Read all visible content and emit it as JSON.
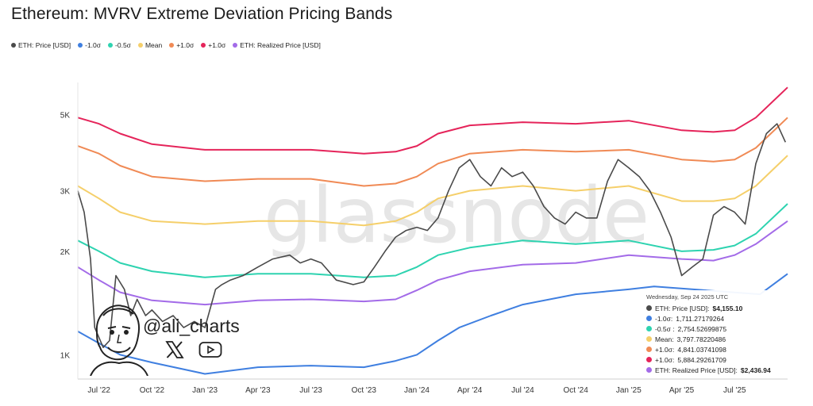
{
  "title": "Ethereum: MVRV Extreme Deviation Pricing Bands",
  "legend": [
    {
      "label": "ETH: Price [USD]",
      "color": "#4a4a4a"
    },
    {
      "label": "-1.0σ",
      "color": "#3f7fe0"
    },
    {
      "label": "-0.5σ",
      "color": "#2ed3b0"
    },
    {
      "label": "Mean",
      "color": "#f5cf6a"
    },
    {
      "label": "+1.0σ",
      "color": "#f08a55"
    },
    {
      "label": "+1.0σ",
      "color": "#e5245a"
    },
    {
      "label": "ETH: Realized Price [USD]",
      "color": "#a36be8"
    }
  ],
  "watermark": "glassnode",
  "handle": "@ali_charts",
  "tooltip": {
    "date": "Wednesday, Sep 24 2025 UTC",
    "rows": [
      {
        "label": "ETH: Price [USD]:",
        "value": "$4,155.10",
        "bold": true,
        "color": "#4a4a4a"
      },
      {
        "label": "-1.0σ:",
        "value": "1,711.27179264",
        "bold": false,
        "color": "#3f7fe0"
      },
      {
        "label": "-0.5σ :",
        "value": "2,754.52699875",
        "bold": false,
        "color": "#2ed3b0"
      },
      {
        "label": "Mean:",
        "value": "3,797.78220486",
        "bold": false,
        "color": "#f5cf6a"
      },
      {
        "label": "+1.0σ:",
        "value": "4,841.03741098",
        "bold": false,
        "color": "#f08a55"
      },
      {
        "label": "+1.0σ:",
        "value": "5,884.29261709",
        "bold": false,
        "color": "#e5245a"
      },
      {
        "label": "ETH: Realized Price [USD]:",
        "value": "$2,436.94",
        "bold": true,
        "color": "#a36be8"
      }
    ]
  },
  "chart_data": {
    "type": "line",
    "title": "Ethereum: MVRV Extreme Deviation Pricing Bands",
    "y_scale": "log",
    "ylim": [
      850,
      6200
    ],
    "y_ticks": [
      {
        "v": 1000,
        "label": "1K"
      },
      {
        "v": 2000,
        "label": "2K"
      },
      {
        "v": 3000,
        "label": "3K"
      },
      {
        "v": 5000,
        "label": "5K"
      }
    ],
    "x_range": [
      2022.4,
      2025.75
    ],
    "x_ticks": [
      {
        "v": 2022.5,
        "label": "Jul '22"
      },
      {
        "v": 2022.75,
        "label": "Oct '22"
      },
      {
        "v": 2023.0,
        "label": "Jan '23"
      },
      {
        "v": 2023.25,
        "label": "Apr '23"
      },
      {
        "v": 2023.5,
        "label": "Jul '23"
      },
      {
        "v": 2023.75,
        "label": "Oct '23"
      },
      {
        "v": 2024.0,
        "label": "Jan '24"
      },
      {
        "v": 2024.25,
        "label": "Apr '24"
      },
      {
        "v": 2024.5,
        "label": "Jul '24"
      },
      {
        "v": 2024.75,
        "label": "Oct '24"
      },
      {
        "v": 2025.0,
        "label": "Jan '25"
      },
      {
        "v": 2025.25,
        "label": "Apr '25"
      },
      {
        "v": 2025.5,
        "label": "Jul '25"
      }
    ],
    "series": [
      {
        "name": "+1.0σ",
        "color": "#e5245a",
        "width": 2,
        "x": [
          2022.4,
          2022.5,
          2022.6,
          2022.75,
          2023.0,
          2023.25,
          2023.5,
          2023.75,
          2023.9,
          2024.0,
          2024.1,
          2024.25,
          2024.5,
          2024.75,
          2025.0,
          2025.25,
          2025.4,
          2025.5,
          2025.6,
          2025.75
        ],
        "y": [
          4900,
          4700,
          4400,
          4100,
          3950,
          3950,
          3950,
          3850,
          3900,
          4050,
          4400,
          4650,
          4750,
          4700,
          4800,
          4500,
          4450,
          4500,
          4900,
          6000
        ]
      },
      {
        "name": "+1.0σ (orange)",
        "color": "#f08a55",
        "width": 2,
        "x": [
          2022.4,
          2022.5,
          2022.6,
          2022.75,
          2023.0,
          2023.25,
          2023.5,
          2023.75,
          2023.9,
          2024.0,
          2024.1,
          2024.25,
          2024.5,
          2024.75,
          2025.0,
          2025.25,
          2025.4,
          2025.5,
          2025.6,
          2025.75
        ],
        "y": [
          4050,
          3850,
          3550,
          3300,
          3200,
          3250,
          3250,
          3100,
          3150,
          3300,
          3600,
          3850,
          3950,
          3900,
          3950,
          3700,
          3650,
          3700,
          4000,
          4900
        ]
      },
      {
        "name": "Mean",
        "color": "#f5cf6a",
        "width": 2,
        "x": [
          2022.4,
          2022.5,
          2022.6,
          2022.75,
          2023.0,
          2023.25,
          2023.5,
          2023.75,
          2023.9,
          2024.0,
          2024.1,
          2024.25,
          2024.5,
          2024.75,
          2025.0,
          2025.25,
          2025.4,
          2025.5,
          2025.6,
          2025.75
        ],
        "y": [
          3100,
          2850,
          2600,
          2450,
          2400,
          2450,
          2450,
          2380,
          2450,
          2600,
          2850,
          3000,
          3100,
          3000,
          3100,
          2800,
          2800,
          2850,
          3100,
          3800
        ]
      },
      {
        "name": "-0.5σ",
        "color": "#2ed3b0",
        "width": 2,
        "x": [
          2022.4,
          2022.5,
          2022.6,
          2022.75,
          2023.0,
          2023.25,
          2023.5,
          2023.75,
          2023.9,
          2024.0,
          2024.1,
          2024.25,
          2024.5,
          2024.75,
          2025.0,
          2025.25,
          2025.4,
          2025.5,
          2025.6,
          2025.75
        ],
        "y": [
          2150,
          2000,
          1850,
          1750,
          1680,
          1720,
          1720,
          1680,
          1700,
          1800,
          1950,
          2050,
          2150,
          2100,
          2150,
          2000,
          2020,
          2080,
          2250,
          2750
        ]
      },
      {
        "name": "ETH: Realized Price [USD]",
        "color": "#a36be8",
        "width": 2,
        "x": [
          2022.4,
          2022.5,
          2022.6,
          2022.75,
          2023.0,
          2023.25,
          2023.5,
          2023.75,
          2023.9,
          2024.0,
          2024.1,
          2024.25,
          2024.5,
          2024.75,
          2025.0,
          2025.25,
          2025.4,
          2025.5,
          2025.6,
          2025.75
        ],
        "y": [
          1800,
          1650,
          1520,
          1440,
          1400,
          1440,
          1450,
          1430,
          1450,
          1540,
          1650,
          1750,
          1830,
          1850,
          1950,
          1900,
          1880,
          1950,
          2100,
          2450
        ]
      },
      {
        "name": "-1.0σ",
        "color": "#3f7fe0",
        "width": 2,
        "x": [
          2022.4,
          2022.5,
          2022.6,
          2022.75,
          2023.0,
          2023.25,
          2023.5,
          2023.75,
          2023.9,
          2024.0,
          2024.1,
          2024.2,
          2024.35,
          2024.5,
          2024.75,
          2025.0,
          2025.12,
          2025.62,
          2025.75
        ],
        "y": [
          1170,
          1080,
          1000,
          950,
          880,
          920,
          930,
          920,
          960,
          1000,
          1100,
          1200,
          1300,
          1400,
          1500,
          1550,
          1580,
          1500,
          1720
        ]
      },
      {
        "name": "ETH: Price [USD]",
        "color": "#4a4a4a",
        "width": 1.6,
        "x": [
          2022.4,
          2022.43,
          2022.46,
          2022.48,
          2022.52,
          2022.55,
          2022.58,
          2022.62,
          2022.65,
          2022.68,
          2022.72,
          2022.75,
          2022.8,
          2022.85,
          2022.9,
          2022.95,
          2023.0,
          2023.05,
          2023.08,
          2023.12,
          2023.18,
          2023.25,
          2023.32,
          2023.4,
          2023.45,
          2023.5,
          2023.55,
          2023.62,
          2023.7,
          2023.75,
          2023.8,
          2023.85,
          2023.9,
          2023.95,
          2024.0,
          2024.05,
          2024.1,
          2024.15,
          2024.2,
          2024.25,
          2024.3,
          2024.35,
          2024.4,
          2024.45,
          2024.5,
          2024.55,
          2024.6,
          2024.65,
          2024.7,
          2024.75,
          2024.8,
          2024.85,
          2024.9,
          2024.95,
          2025.0,
          2025.05,
          2025.1,
          2025.15,
          2025.2,
          2025.25,
          2025.3,
          2025.35,
          2025.4,
          2025.45,
          2025.5,
          2025.55,
          2025.6,
          2025.65,
          2025.7,
          2025.74
        ],
        "y": [
          3000,
          2600,
          1900,
          1200,
          1050,
          1100,
          1700,
          1550,
          1300,
          1450,
          1300,
          1350,
          1250,
          1300,
          1200,
          1250,
          1200,
          1550,
          1600,
          1650,
          1700,
          1800,
          1900,
          1950,
          1850,
          1900,
          1850,
          1650,
          1600,
          1630,
          1800,
          2000,
          2200,
          2300,
          2350,
          2300,
          2500,
          3000,
          3500,
          3700,
          3300,
          3100,
          3500,
          3300,
          3400,
          3100,
          2700,
          2500,
          2400,
          2600,
          2500,
          2500,
          3200,
          3700,
          3500,
          3300,
          3000,
          2600,
          2200,
          1700,
          1800,
          1900,
          2550,
          2700,
          2600,
          2400,
          3600,
          4400,
          4700,
          4155
        ]
      }
    ]
  }
}
